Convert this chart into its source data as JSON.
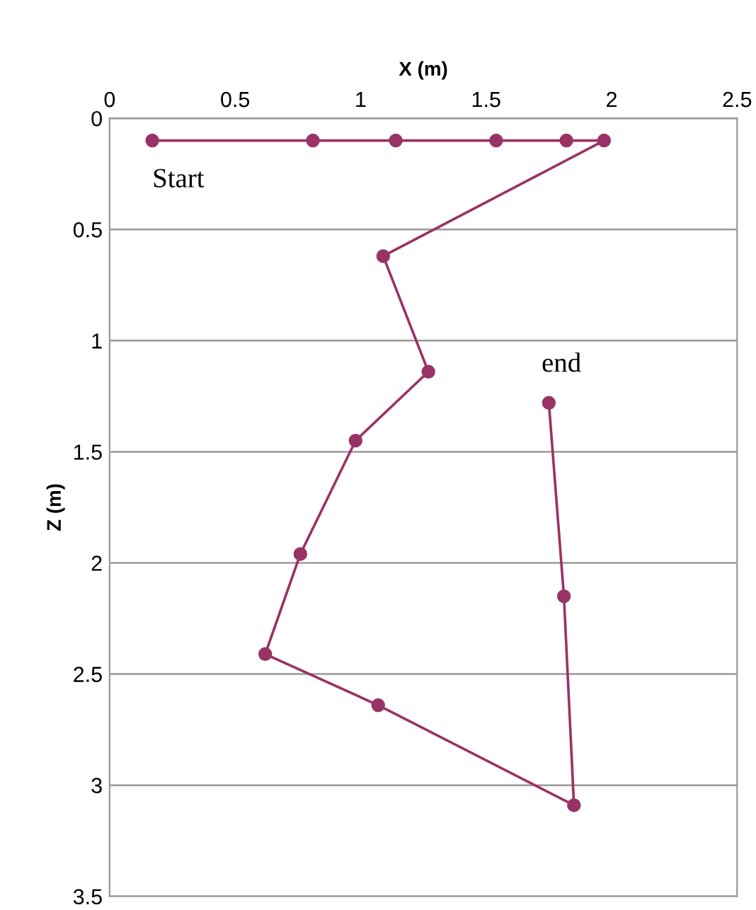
{
  "chart_data": {
    "type": "line",
    "xlabel": "X (m)",
    "ylabel": "Z (m)",
    "series": [
      {
        "color": "#993366",
        "x": [
          0.17,
          0.81,
          1.14,
          1.54,
          1.82,
          1.97,
          1.09,
          1.27,
          0.98,
          0.76,
          0.62,
          1.07,
          1.85,
          1.81,
          1.75
        ],
        "values": [
          0.1,
          0.1,
          0.1,
          0.1,
          0.1,
          0.1,
          0.62,
          1.14,
          1.45,
          1.96,
          2.41,
          2.64,
          3.09,
          2.15,
          1.28
        ]
      }
    ],
    "xlim": [
      0,
      2.5
    ],
    "xticks": [
      0,
      0.5,
      1,
      1.5,
      2,
      2.5
    ],
    "ylim": [
      3.5,
      0
    ],
    "yticks": [
      0,
      0.5,
      1,
      1.5,
      2,
      2.5,
      3,
      3.5
    ],
    "grid": "y",
    "marker": "circle",
    "line_style": "solid",
    "annotations": [
      {
        "text": "Start",
        "x": 0.17,
        "y": 0.1
      },
      {
        "text": "end",
        "x": 1.75,
        "y": 1.28
      }
    ]
  }
}
